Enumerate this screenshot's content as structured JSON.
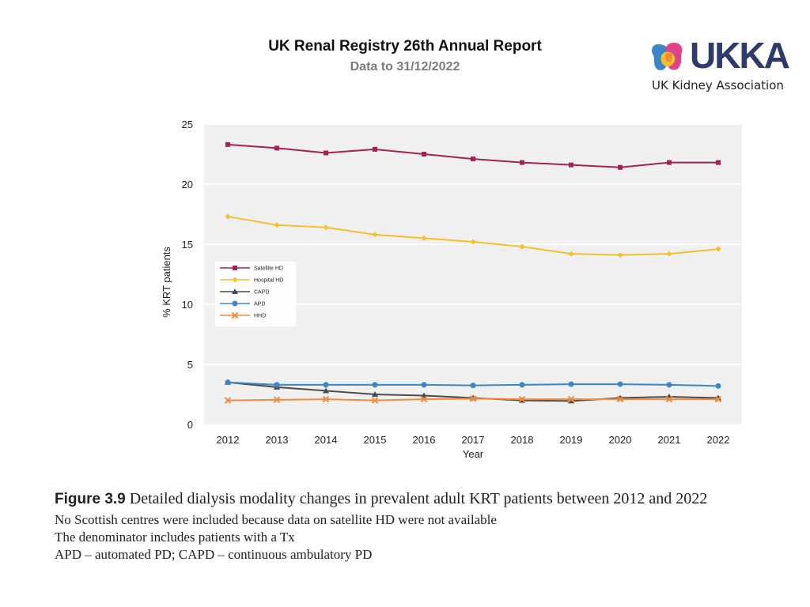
{
  "header": {
    "title": "UK Renal Registry 26th Annual Report",
    "subtitle": "Data to 31/12/2022"
  },
  "logo": {
    "wordmark": "UKKA",
    "tagline": "UK Kidney Association"
  },
  "chart_data": {
    "type": "line",
    "title": "",
    "xlabel": "Year",
    "ylabel": "% KRT patients",
    "ylim": [
      0,
      25
    ],
    "yticks": [
      "0",
      "5",
      "10",
      "15",
      "20",
      "25"
    ],
    "grid": true,
    "legend_position": "middle-left",
    "x": [
      "2012",
      "2013",
      "2014",
      "2015",
      "2016",
      "2017",
      "2018",
      "2019",
      "2020",
      "2021",
      "2022"
    ],
    "series": [
      {
        "name": "Satellite HD",
        "color": "#a3234f",
        "marker": "square",
        "values": [
          23.3,
          23.0,
          22.6,
          22.9,
          22.5,
          22.1,
          21.8,
          21.6,
          21.4,
          21.8,
          21.8
        ]
      },
      {
        "name": "Hospital HD",
        "color": "#f5bf2a",
        "marker": "diamond",
        "values": [
          17.3,
          16.6,
          16.4,
          15.8,
          15.5,
          15.2,
          14.8,
          14.2,
          14.1,
          14.2,
          14.6
        ]
      },
      {
        "name": "CAPD",
        "color": "#4a4a4a",
        "marker": "triangle",
        "values": [
          3.5,
          3.1,
          2.8,
          2.5,
          2.4,
          2.2,
          2.0,
          1.95,
          2.2,
          2.3,
          2.2
        ]
      },
      {
        "name": "APD",
        "color": "#3a86c8",
        "marker": "circle",
        "values": [
          3.5,
          3.3,
          3.3,
          3.3,
          3.3,
          3.25,
          3.3,
          3.35,
          3.35,
          3.3,
          3.2
        ]
      },
      {
        "name": "HHD",
        "color": "#f08a3c",
        "marker": "x",
        "values": [
          2.0,
          2.05,
          2.1,
          2.0,
          2.1,
          2.15,
          2.1,
          2.1,
          2.1,
          2.1,
          2.1
        ]
      }
    ]
  },
  "caption": {
    "figure_label": "Figure 3.9",
    "figure_title": "Detailed dialysis modality changes in prevalent adult KRT patients between 2012 and 2022",
    "note1": "No Scottish centres were included because data on satellite HD were not available",
    "note2": "The denominator includes patients with a Tx",
    "note3": "APD – automated PD; CAPD – continuous ambulatory PD"
  },
  "colors": {
    "plot_background": "#f0f0f0",
    "logo_text": "#2d3a6b"
  }
}
